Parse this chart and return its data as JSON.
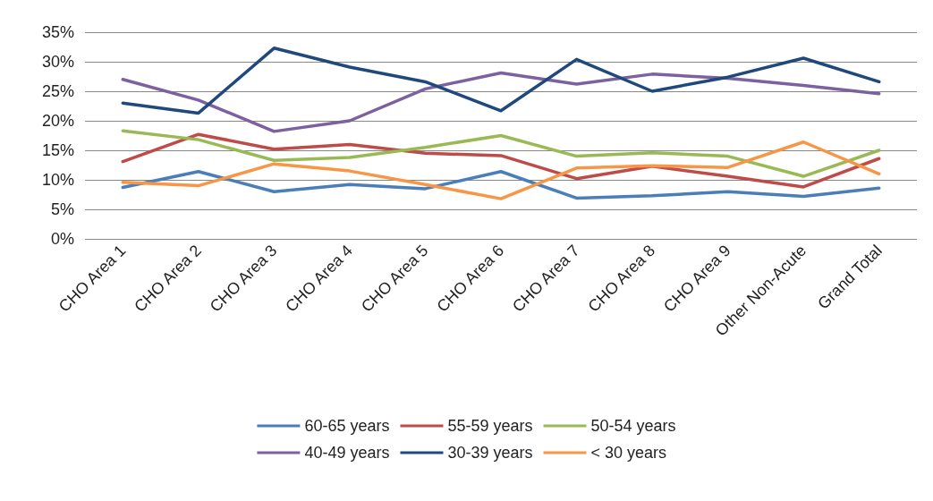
{
  "chart_data": {
    "type": "line",
    "categories": [
      "CHO Area 1",
      "CHO Area 2",
      "CHO Area 3",
      "CHO Area 4",
      "CHO Area 5",
      "CHO Area 6",
      "CHO Area 7",
      "CHO Area 8",
      "CHO Area 9",
      "Other Non-Acute",
      "Grand Total"
    ],
    "series": [
      {
        "name": "60-65 years",
        "color": "#4a7ebb",
        "values": [
          8.7,
          11.4,
          8.0,
          9.2,
          8.5,
          11.4,
          6.9,
          7.3,
          8.0,
          7.2,
          8.6
        ]
      },
      {
        "name": "55-59 years",
        "color": "#be4b48",
        "values": [
          13.1,
          17.7,
          15.2,
          16.0,
          14.5,
          14.1,
          10.2,
          12.3,
          10.6,
          8.8,
          13.6
        ]
      },
      {
        "name": "50-54 years",
        "color": "#98b954",
        "values": [
          18.3,
          16.8,
          13.3,
          13.8,
          15.5,
          17.5,
          14.0,
          14.6,
          14.0,
          10.6,
          15.0
        ]
      },
      {
        "name": "40-49 years",
        "color": "#7d60a0",
        "values": [
          27.0,
          23.5,
          18.2,
          20.0,
          25.4,
          28.1,
          26.2,
          27.9,
          27.2,
          26.0,
          24.6
        ]
      },
      {
        "name": "30-39 years",
        "color": "#1f497d",
        "values": [
          23.0,
          21.3,
          32.3,
          29.1,
          26.6,
          21.7,
          30.4,
          25.0,
          27.4,
          30.6,
          26.6
        ]
      },
      {
        "name": "< 30 years",
        "color": "#f79646",
        "values": [
          9.6,
          9.0,
          12.7,
          11.5,
          9.2,
          6.8,
          12.0,
          12.4,
          12.1,
          16.4,
          11.0
        ]
      }
    ],
    "ylim": [
      0,
      35
    ],
    "yticks": [
      {
        "value": 0,
        "label": "0%"
      },
      {
        "value": 5,
        "label": "5%"
      },
      {
        "value": 10,
        "label": "10%"
      },
      {
        "value": 15,
        "label": "15%"
      },
      {
        "value": 20,
        "label": "20%"
      },
      {
        "value": 25,
        "label": "25%"
      },
      {
        "value": 30,
        "label": "30%"
      },
      {
        "value": 35,
        "label": "35%"
      }
    ],
    "grid": "y",
    "legend": "bottom",
    "marker": "none",
    "line_style": "solid"
  }
}
